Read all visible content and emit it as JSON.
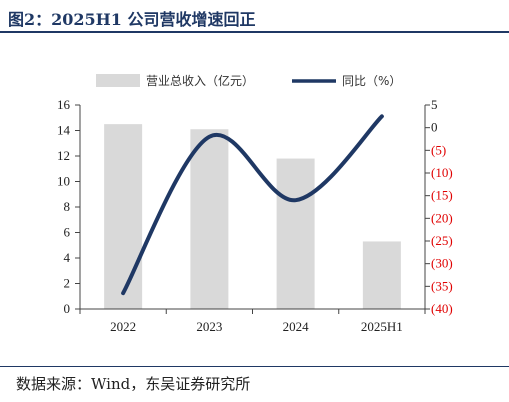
{
  "header": {
    "title": "图2：2025H1 公司营收增速回正"
  },
  "footer": {
    "source": "数据来源：Wind，东吴证券研究所"
  },
  "colors": {
    "bar": "#d9d9d9",
    "line": "#1f3864",
    "right_axis_negative": "#e00000"
  },
  "chart_data": {
    "type": "bar",
    "categories": [
      "2022",
      "2023",
      "2024",
      "2025H1"
    ],
    "series": [
      {
        "name": "营业总收入（亿元）",
        "type": "bar",
        "axis": "left",
        "values": [
          14.5,
          14.1,
          11.8,
          5.3
        ]
      },
      {
        "name": "同比（%）",
        "type": "line",
        "axis": "right",
        "smooth": true,
        "values": [
          -36.5,
          -2,
          -16,
          2.5
        ]
      }
    ],
    "y_left": {
      "ylim": [
        0,
        16
      ],
      "ticks": [
        "0",
        "2",
        "4",
        "6",
        "8",
        "10",
        "12",
        "14",
        "16"
      ]
    },
    "y_right": {
      "ylim": [
        -40,
        5
      ],
      "ticks": [
        "5",
        "0",
        "(5)",
        "(10)",
        "(15)",
        "(20)",
        "(25)",
        "(30)",
        "(35)",
        "(40)"
      ]
    },
    "legend": "top-center",
    "grid": false
  }
}
